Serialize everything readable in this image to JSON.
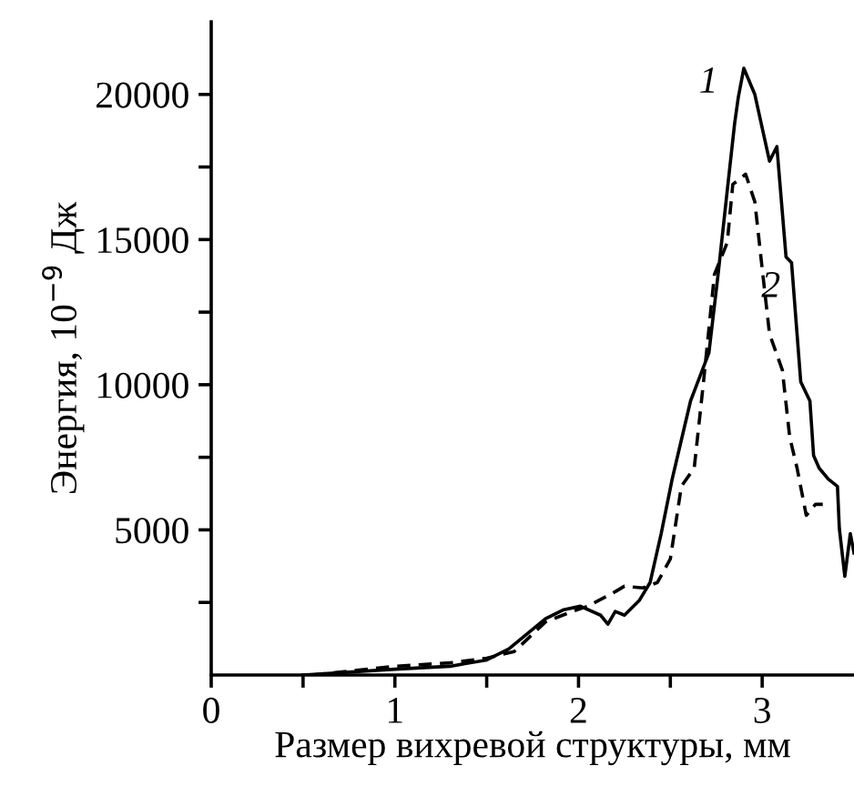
{
  "chart_data": {
    "type": "line",
    "xlabel": "Размер вихревой структуры, мм",
    "ylabel": "Энергия, 10$^{−9}$ Дж",
    "xlim": [
      0,
      3.5
    ],
    "ylim": [
      0,
      22500
    ],
    "xticks": [
      {
        "value": 0,
        "label": "0"
      },
      {
        "value": 0.5,
        "label": null
      },
      1,
      {
        "value": 1.5,
        "label": null
      },
      2,
      {
        "value": 2.5,
        "label": null
      },
      3
    ],
    "yticks": [
      {
        "value": 2500,
        "label": null
      },
      5000,
      {
        "value": 7500,
        "label": null
      },
      10000,
      {
        "value": 12500,
        "label": null
      },
      15000,
      {
        "value": 17500,
        "label": null
      },
      20000
    ],
    "grid": false,
    "legend": false,
    "marker": "none",
    "series": [
      {
        "name": "1",
        "color": "#000000",
        "line_style": "solid",
        "x": [
          0.5,
          1.0,
          1.3,
          1.5,
          1.62,
          1.82,
          1.92,
          2.01,
          2.12,
          2.16,
          2.2,
          2.25,
          2.33,
          2.39,
          2.45,
          2.51,
          2.61,
          2.71,
          2.76,
          2.81,
          2.85,
          2.87,
          2.9,
          2.96,
          3.04,
          3.08,
          3.13,
          3.16,
          3.21,
          3.26,
          3.28,
          3.31,
          3.36,
          3.41,
          3.42,
          3.45,
          3.48,
          3.5
        ],
        "values": [
          0,
          200,
          300,
          520,
          900,
          1940,
          2250,
          2370,
          2060,
          1750,
          2190,
          2060,
          2560,
          3190,
          4870,
          6750,
          9440,
          11100,
          13800,
          16700,
          19000,
          19900,
          20900,
          20000,
          17700,
          18200,
          14400,
          14200,
          10100,
          9440,
          7560,
          7130,
          6750,
          6500,
          5060,
          3400,
          4870,
          4200
        ]
      },
      {
        "name": "2",
        "color": "#000000",
        "line_style": "dashed",
        "x": [
          0.55,
          1.0,
          1.3,
          1.5,
          1.65,
          1.82,
          1.95,
          2.05,
          2.2,
          2.25,
          2.35,
          2.43,
          2.5,
          2.56,
          2.63,
          2.68,
          2.74,
          2.81,
          2.84,
          2.91,
          2.96,
          3.0,
          3.04,
          3.11,
          3.15,
          3.19,
          3.24,
          3.29,
          3.33
        ],
        "values": [
          0,
          300,
          420,
          580,
          810,
          1830,
          2150,
          2370,
          2870,
          3060,
          3000,
          3190,
          4000,
          6500,
          7130,
          10060,
          13800,
          14900,
          16900,
          17250,
          16300,
          14000,
          11750,
          10500,
          8190,
          7130,
          5500,
          5880,
          5880
        ]
      }
    ]
  }
}
